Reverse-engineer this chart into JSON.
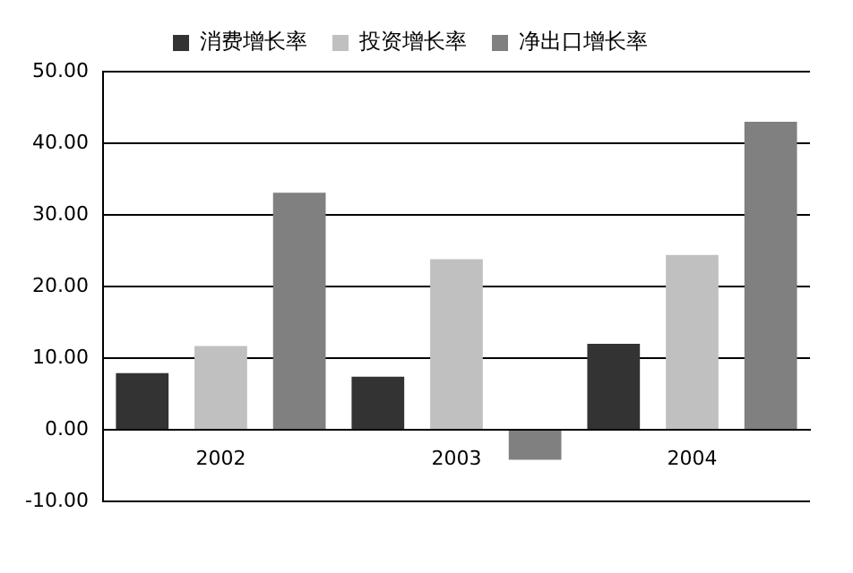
{
  "chart_data": {
    "type": "bar",
    "categories": [
      "2002",
      "2003",
      "2004"
    ],
    "series": [
      {
        "name": "消费增长率",
        "color": "#333333",
        "values": [
          7.9,
          7.4,
          12.0
        ]
      },
      {
        "name": "投资增长率",
        "color": "#c0c0c0",
        "values": [
          11.7,
          23.8,
          24.4
        ]
      },
      {
        "name": "净出口增长率",
        "color": "#808080",
        "values": [
          33.1,
          -4.2,
          43.0
        ]
      }
    ],
    "ylim": [
      -10,
      50
    ],
    "yticks": [
      {
        "value": -10,
        "label": "-10.00"
      },
      {
        "value": 0,
        "label": "0.00"
      },
      {
        "value": 10,
        "label": "10.00"
      },
      {
        "value": 20,
        "label": "20.00"
      },
      {
        "value": 30,
        "label": "30.00"
      },
      {
        "value": 40,
        "label": "40.00"
      },
      {
        "value": 50,
        "label": "50.00"
      }
    ],
    "grid": "y",
    "legend": "top"
  }
}
